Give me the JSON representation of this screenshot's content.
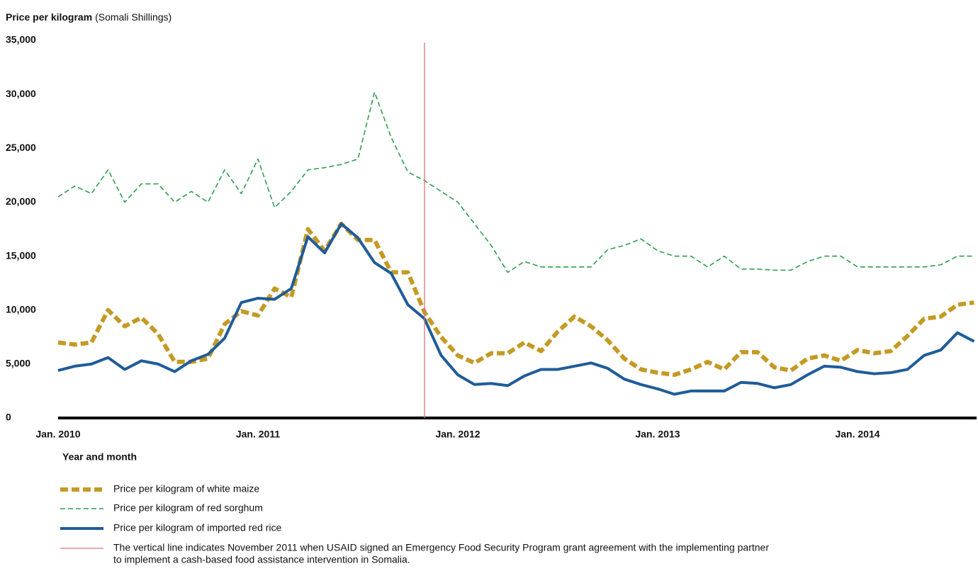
{
  "chart_data": {
    "type": "line",
    "title": "Price per kilogram",
    "title_unit": "(Somali Shillings)",
    "x_label": "Year and month",
    "categories": [
      "Jan. 2010",
      null,
      null,
      null,
      null,
      null,
      null,
      null,
      null,
      null,
      null,
      null,
      "Jan. 2011",
      null,
      null,
      null,
      null,
      null,
      null,
      null,
      null,
      null,
      null,
      null,
      "Jan. 2012",
      null,
      null,
      null,
      null,
      null,
      null,
      null,
      null,
      null,
      null,
      null,
      "Jan. 2013",
      null,
      null,
      null,
      null,
      null,
      null,
      null,
      null,
      null,
      null,
      null,
      "Jan. 2014",
      null,
      null,
      null,
      null,
      null,
      null,
      null
    ],
    "series": [
      {
        "name": "Price per kilogram of white maize",
        "color": "#c49a25",
        "values": [
          7000,
          6800,
          7000,
          10000,
          8500,
          9300,
          7800,
          5200,
          5200,
          5500,
          8700,
          9900,
          9500,
          12000,
          11200,
          17500,
          15500,
          18000,
          16500,
          16500,
          13500,
          13500,
          9800,
          7500,
          5800,
          5100,
          6000,
          6000,
          7000,
          6200,
          8000,
          9400,
          8500,
          7200,
          5500,
          4500,
          4200,
          4000,
          4500,
          5200,
          4500,
          6100,
          6100,
          4700,
          4400,
          5500,
          5800,
          5300,
          6300,
          6000,
          6200,
          7600,
          9200,
          9400,
          10500,
          10700
        ]
      },
      {
        "name": "Price per kilogram of red sorghum",
        "color": "#2e9e4f",
        "values": [
          20500,
          21500,
          20800,
          23000,
          20000,
          21700,
          21700,
          20000,
          21000,
          20000,
          23000,
          20800,
          24000,
          19500,
          21000,
          23000,
          23200,
          23500,
          24000,
          30200,
          26000,
          22800,
          22000,
          21000,
          20000,
          18000,
          16000,
          13500,
          14500,
          14000,
          14000,
          14000,
          14000,
          15600,
          16000,
          16600,
          15500,
          15000,
          15000,
          14000,
          15000,
          13800,
          13800,
          13700,
          13700,
          14500,
          15000,
          15000,
          14000,
          14000,
          14000,
          14000,
          14000,
          14200,
          15000,
          15000
        ]
      },
      {
        "name": "Price per kilogram of imported red rice",
        "color": "#1f5c99",
        "values": [
          4400,
          4800,
          5000,
          5600,
          4500,
          5300,
          5000,
          4300,
          5300,
          5900,
          7400,
          10700,
          11100,
          11000,
          12000,
          16800,
          15300,
          18000,
          16700,
          14400,
          13400,
          10500,
          9200,
          5800,
          4000,
          3100,
          3200,
          3000,
          3900,
          4500,
          4500,
          4800,
          5100,
          4600,
          3600,
          3100,
          2700,
          2200,
          2500,
          2500,
          2500,
          3300,
          3200,
          2800,
          3100,
          4000,
          4800,
          4700,
          4300,
          4100,
          4200,
          4500,
          5800,
          6300,
          7900,
          7100
        ]
      }
    ],
    "vline": {
      "index": 22,
      "color": "#d9757f",
      "label_lines": [
        "The vertical line indicates November 2011 when USAID signed an Emergency Food Security Program grant agreement with the implementing partner",
        "to implement a cash-based food assistance intervention in Somalia."
      ]
    },
    "ylim": [
      0,
      35000
    ],
    "yticks": [
      0,
      {
        "value": 5000,
        "label": "5,000"
      },
      {
        "value": 10000,
        "label": "10,000"
      },
      {
        "value": 15000,
        "label": "15,000"
      },
      {
        "value": 20000,
        "label": "20,000"
      },
      {
        "value": 25000,
        "label": "25,000"
      },
      {
        "value": 30000,
        "label": "30,000"
      },
      {
        "value": 35000,
        "label": "35,000"
      }
    ],
    "grid": false
  }
}
